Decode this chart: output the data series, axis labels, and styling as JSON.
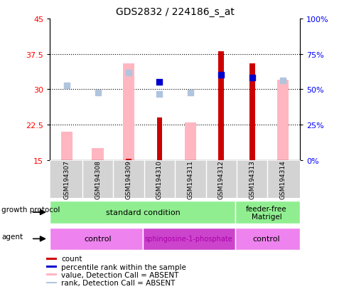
{
  "title": "GDS2832 / 224186_s_at",
  "samples": [
    "GSM194307",
    "GSM194308",
    "GSM194309",
    "GSM194310",
    "GSM194311",
    "GSM194312",
    "GSM194313",
    "GSM194314"
  ],
  "ylim_left": [
    15,
    45
  ],
  "ylim_right": [
    0,
    100
  ],
  "yticks_left": [
    15,
    22.5,
    30,
    37.5,
    45
  ],
  "yticks_right": [
    0,
    25,
    50,
    75,
    100
  ],
  "ytick_labels_left": [
    "15",
    "22.5",
    "30",
    "37.5",
    "45"
  ],
  "ytick_labels_right": [
    "0%",
    "25%",
    "50%",
    "75%",
    "100%"
  ],
  "count_values": [
    null,
    null,
    15.2,
    24.0,
    null,
    38.0,
    35.5,
    null
  ],
  "rank_values": [
    null,
    null,
    null,
    31.5,
    null,
    33.0,
    32.5,
    null
  ],
  "value_absent": [
    21.0,
    17.5,
    35.5,
    null,
    23.0,
    null,
    null,
    32.0
  ],
  "rank_absent": [
    30.8,
    29.3,
    33.5,
    29.0,
    29.3,
    null,
    null,
    31.8
  ],
  "count_color": "#cc0000",
  "rank_color": "#0000cc",
  "value_absent_color": "#ffb6c1",
  "rank_absent_color": "#b0c4de",
  "sample_bg": "#d3d3d3",
  "gp_color1": "#90ee90",
  "agent_light": "#ee82ee",
  "agent_dark": "#cc44cc",
  "legend_labels": [
    "count",
    "percentile rank within the sample",
    "value, Detection Call = ABSENT",
    "rank, Detection Call = ABSENT"
  ]
}
